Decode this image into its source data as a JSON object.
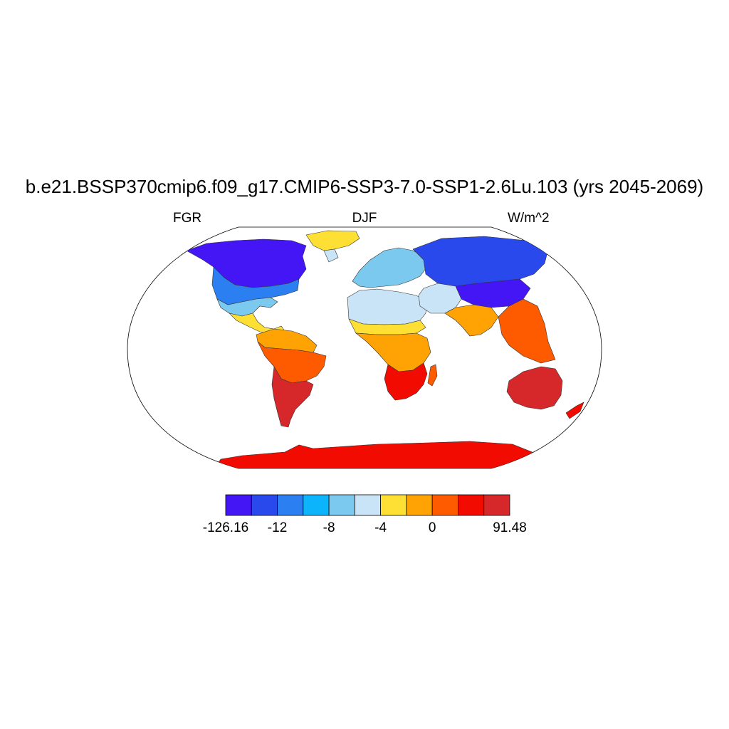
{
  "title": "b.e21.BSSP370cmip6.f09_g17.CMIP6-SSP3-7.0-SSP1-2.6Lu.103 (yrs 2045-2069)",
  "left_label": "FGR",
  "center_label": "DJF",
  "right_label": "W/m^2",
  "colorbar": {
    "colors": [
      "#4416f5",
      "#2a49ec",
      "#2b7ff0",
      "#0bb4fb",
      "#7cc9ef",
      "#c8e4f6",
      "#fee034",
      "#fea303",
      "#fe5a00",
      "#f10b00",
      "#d6282a"
    ],
    "labels": [
      "-126.16",
      "-12",
      "-8",
      "-4",
      "0",
      "91.48"
    ],
    "label_boundary_index": [
      0,
      2,
      4,
      6,
      8,
      11
    ]
  },
  "map": {
    "projection": "Robinson",
    "regions": [
      {
        "name": "antarctica",
        "color": "#f10b00"
      },
      {
        "name": "greenland-north",
        "color": "#fee034"
      },
      {
        "name": "greenland-south",
        "color": "#c8e4f6"
      },
      {
        "name": "north-america-north",
        "color": "#4416f5"
      },
      {
        "name": "north-america-mid",
        "color": "#2b7ff0"
      },
      {
        "name": "north-america-south",
        "color": "#7cc9ef"
      },
      {
        "name": "mexico",
        "color": "#fee034"
      },
      {
        "name": "south-america-north",
        "color": "#fea303"
      },
      {
        "name": "south-america-mid",
        "color": "#fe5a00"
      },
      {
        "name": "south-america-south",
        "color": "#d6282a"
      },
      {
        "name": "europe",
        "color": "#7cc9ef"
      },
      {
        "name": "north-africa",
        "color": "#c8e4f6"
      },
      {
        "name": "sahel",
        "color": "#fee034"
      },
      {
        "name": "central-africa",
        "color": "#fea303"
      },
      {
        "name": "southern-africa",
        "color": "#f10b00"
      },
      {
        "name": "madagascar",
        "color": "#fe5a00"
      },
      {
        "name": "siberia",
        "color": "#2a49ec"
      },
      {
        "name": "central-asia",
        "color": "#4416f5"
      },
      {
        "name": "middle-east",
        "color": "#c8e4f6"
      },
      {
        "name": "india",
        "color": "#fea303"
      },
      {
        "name": "southeast-asia",
        "color": "#fe5a00"
      },
      {
        "name": "australia",
        "color": "#d6282a"
      }
    ]
  }
}
